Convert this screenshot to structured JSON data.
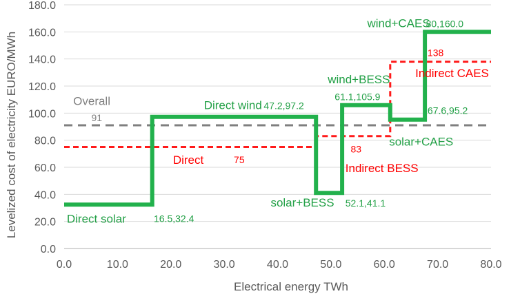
{
  "chart_data": {
    "type": "line",
    "xlabel": "Electrical energy TWh",
    "ylabel": "Levelized cost of electricity EURO/MWh",
    "xlim": [
      0,
      80
    ],
    "ylim": [
      0,
      180
    ],
    "x_ticks": [
      "0.0",
      "10.0",
      "20.0",
      "30.0",
      "40.0",
      "50.0",
      "60.0",
      "70.0",
      "80.0"
    ],
    "y_ticks": [
      "0.0",
      "20.0",
      "40.0",
      "60.0",
      "80.0",
      "100.0",
      "120.0",
      "140.0",
      "160.0",
      "180.0"
    ],
    "x_tick_values": [
      0,
      10,
      20,
      30,
      40,
      50,
      60,
      70,
      80
    ],
    "y_tick_values": [
      0,
      20,
      40,
      60,
      80,
      100,
      120,
      140,
      160,
      180
    ],
    "grid": "horizontal",
    "colors": {
      "direct_step": "#22b14c",
      "indirect_step": "#ff1a1a",
      "overall": "#7f7f7f",
      "label_green": "#22a046",
      "label_red": "#ff0000",
      "axis_text": "#595959",
      "grid": "#d9d9d9"
    },
    "series": [
      {
        "key": "direct_step",
        "points": [
          [
            0,
            32.4
          ],
          [
            16.5,
            32.4
          ],
          [
            16.5,
            97.2
          ],
          [
            47.2,
            97.2
          ],
          [
            47.2,
            41.1
          ],
          [
            52.1,
            41.1
          ],
          [
            52.1,
            105.9
          ],
          [
            61.1,
            105.9
          ],
          [
            61.1,
            95.2
          ],
          [
            67.6,
            95.2
          ],
          [
            67.6,
            160
          ],
          [
            80,
            160
          ]
        ]
      },
      {
        "key": "indirect_step",
        "points": [
          [
            0,
            75
          ],
          [
            47.2,
            75
          ],
          [
            47.2,
            83
          ],
          [
            61.1,
            83
          ],
          [
            61.1,
            138
          ],
          [
            80,
            138
          ]
        ]
      },
      {
        "key": "overall",
        "points": [
          [
            0,
            91
          ],
          [
            80,
            91
          ]
        ]
      }
    ],
    "annotations": [
      {
        "text": "Direct solar",
        "x": 0.5,
        "y": 19,
        "color": "label_green",
        "size": 17,
        "anchor": "start"
      },
      {
        "text": "16.5,32.4",
        "x": 16.8,
        "y": 19.5,
        "color": "label_green",
        "size": 14,
        "anchor": "start"
      },
      {
        "text": "Direct wind",
        "x": 26.2,
        "y": 103,
        "color": "label_green",
        "size": 17,
        "anchor": "start"
      },
      {
        "text": "47.2,97.2",
        "x": 37.4,
        "y": 103,
        "color": "label_green",
        "size": 14,
        "anchor": "start"
      },
      {
        "text": "solar+BESS",
        "x": 38.7,
        "y": 31,
        "color": "label_green",
        "size": 17,
        "anchor": "start"
      },
      {
        "text": "52.1,41.1",
        "x": 52.7,
        "y": 31,
        "color": "label_green",
        "size": 14,
        "anchor": "start"
      },
      {
        "text": "wind+BESS",
        "x": 49.4,
        "y": 122,
        "color": "label_green",
        "size": 17,
        "anchor": "start"
      },
      {
        "text": "61.1,105.9",
        "x": 50.7,
        "y": 109.5,
        "color": "label_green",
        "size": 14,
        "anchor": "start"
      },
      {
        "text": "wind+CAES",
        "x": 56.8,
        "y": 163.5,
        "color": "label_green",
        "size": 17,
        "anchor": "start"
      },
      {
        "text": "80,160.0",
        "x": 67.8,
        "y": 163.5,
        "color": "label_green",
        "size": 14,
        "anchor": "start"
      },
      {
        "text": "67.6,95.2",
        "x": 68.1,
        "y": 99.5,
        "color": "label_green",
        "size": 14,
        "anchor": "start"
      },
      {
        "text": "solar+CAES",
        "x": 60.9,
        "y": 76,
        "color": "label_green",
        "size": 17,
        "anchor": "start"
      },
      {
        "text": "138",
        "x": 68.1,
        "y": 142,
        "color": "label_red",
        "size": 14,
        "anchor": "start"
      },
      {
        "text": "Indirect CAES",
        "x": 65.8,
        "y": 126.5,
        "color": "label_red",
        "size": 17,
        "anchor": "start"
      },
      {
        "text": "83",
        "x": 53.7,
        "y": 71,
        "color": "label_red",
        "size": 14,
        "anchor": "start"
      },
      {
        "text": "Indirect BESS",
        "x": 52.7,
        "y": 56.5,
        "color": "label_red",
        "size": 17,
        "anchor": "start"
      },
      {
        "text": "Direct",
        "x": 20.4,
        "y": 62.5,
        "color": "label_red",
        "size": 17,
        "anchor": "start"
      },
      {
        "text": "75",
        "x": 31.8,
        "y": 63,
        "color": "label_red",
        "size": 14,
        "anchor": "start"
      },
      {
        "text": "Overall",
        "x": 1.7,
        "y": 106,
        "color": "overall",
        "size": 17,
        "anchor": "start"
      },
      {
        "text": "91",
        "x": 5.1,
        "y": 94,
        "color": "overall",
        "size": 14,
        "anchor": "start"
      }
    ]
  }
}
